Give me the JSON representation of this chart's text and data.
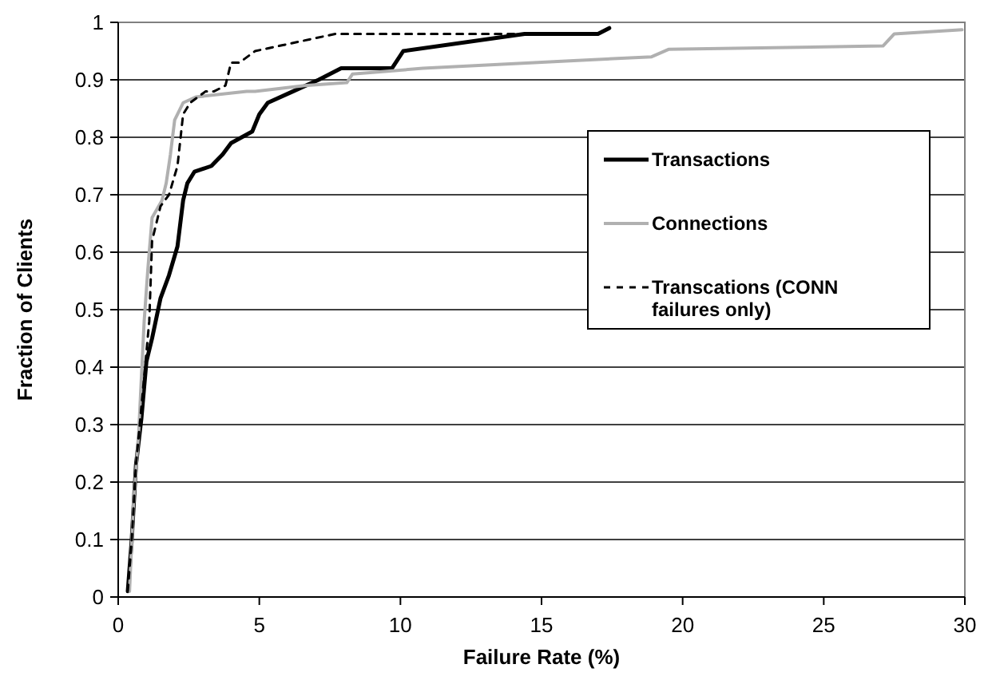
{
  "chart_data": {
    "type": "line",
    "xlabel": "Failure Rate (%)",
    "ylabel": "Fraction of Clients",
    "xlim": [
      0,
      30
    ],
    "ylim": [
      0,
      1
    ],
    "xticks": [
      0,
      5,
      10,
      15,
      20,
      25,
      30
    ],
    "yticks": [
      0,
      0.1,
      0.2,
      0.3,
      0.4,
      0.5,
      0.6,
      0.7,
      0.8,
      0.9,
      1
    ],
    "grid": "y",
    "legend": "right",
    "series": [
      {
        "name": "Transactions",
        "color": "#000000",
        "line_style": "solid",
        "x": [
          0.34,
          0.48,
          0.63,
          0.82,
          1.0,
          1.2,
          1.5,
          1.8,
          2.1,
          2.3,
          2.45,
          2.7,
          3.3,
          3.7,
          4.0,
          4.75,
          5.0,
          5.3,
          6.2,
          7.1,
          7.9,
          9.7,
          10.1,
          14.4,
          17.0,
          17.4
        ],
        "values": [
          0.01,
          0.1,
          0.23,
          0.31,
          0.41,
          0.45,
          0.52,
          0.56,
          0.61,
          0.69,
          0.72,
          0.74,
          0.75,
          0.77,
          0.79,
          0.81,
          0.84,
          0.86,
          0.88,
          0.9,
          0.92,
          0.92,
          0.95,
          0.98,
          0.98,
          0.99
        ]
      },
      {
        "name": "Connections",
        "color": "#b0b0b0",
        "line_style": "solid",
        "x": [
          0.4,
          0.54,
          0.73,
          0.92,
          1.05,
          1.2,
          1.55,
          1.7,
          1.85,
          2.0,
          2.3,
          2.75,
          4.55,
          4.85,
          6.6,
          8.1,
          8.3,
          10.8,
          16.0,
          18.9,
          19.5,
          27.1,
          27.5,
          29.9
        ],
        "values": [
          0.01,
          0.16,
          0.29,
          0.48,
          0.57,
          0.66,
          0.69,
          0.72,
          0.77,
          0.83,
          0.86,
          0.87,
          0.88,
          0.88,
          0.89,
          0.895,
          0.91,
          0.92,
          0.933,
          0.94,
          0.953,
          0.959,
          0.98,
          0.987
        ]
      },
      {
        "name": "Transcations (CONN failures only)",
        "color": "#000000",
        "line_style": "dashed",
        "x": [
          0.34,
          0.48,
          0.63,
          0.82,
          1.1,
          1.2,
          1.5,
          1.8,
          2.1,
          2.3,
          2.55,
          3.1,
          3.4,
          3.8,
          4.0,
          4.3,
          4.85,
          5.8,
          7.7,
          10.8,
          16.8
        ],
        "values": [
          0.01,
          0.1,
          0.23,
          0.33,
          0.48,
          0.62,
          0.68,
          0.7,
          0.75,
          0.84,
          0.86,
          0.88,
          0.88,
          0.89,
          0.93,
          0.93,
          0.95,
          0.96,
          0.98,
          0.98,
          0.98
        ]
      }
    ]
  }
}
